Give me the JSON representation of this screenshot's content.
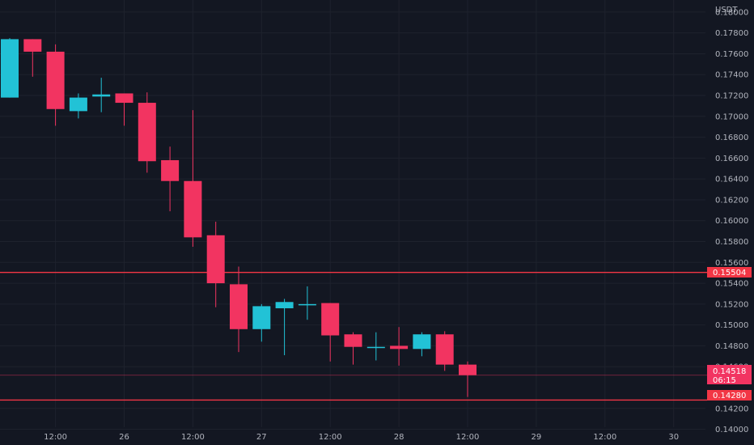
{
  "axis": {
    "currency": "USDT"
  },
  "price_tags": {
    "level_upper": "0.15504",
    "current_price": "0.14518",
    "countdown": "06:15",
    "level_lower": "0.14280"
  },
  "colors": {
    "background": "#131722",
    "grid": "#1e222d",
    "up": "#22c2d6",
    "down": "#f23461",
    "level_line": "#f23645",
    "text": "#b2b5be"
  },
  "chart_data": {
    "type": "candlestick",
    "y_unit": "USDT",
    "ylim": [
      0.1395,
      0.181
    ],
    "y_ticks": [
      0.14,
      0.142,
      0.146,
      0.148,
      0.15,
      0.152,
      0.154,
      0.156,
      0.158,
      0.16,
      0.162,
      0.164,
      0.166,
      0.168,
      0.17,
      0.172,
      0.174,
      0.176,
      0.178,
      0.18
    ],
    "y_tick_labels": [
      "0.14000",
      "0.14200",
      "0.14600",
      "0.14800",
      "0.15000",
      "0.15200",
      "0.15400",
      "0.15600",
      "0.15800",
      "0.16000",
      "0.16200",
      "0.16400",
      "0.16600",
      "0.16800",
      "0.17000",
      "0.17200",
      "0.17400",
      "0.17600",
      "0.17800",
      "0.18000"
    ],
    "x_tick_labels": [
      "12:00",
      "26",
      "12:00",
      "27",
      "12:00",
      "28",
      "12:00",
      "29",
      "12:00",
      "30"
    ],
    "x_tick_slots": [
      2,
      5,
      8,
      11,
      14,
      17,
      20,
      23,
      26,
      29
    ],
    "candles": [
      {
        "o": 0.1718,
        "h": 0.1775,
        "l": 0.1718,
        "c": 0.1774
      },
      {
        "o": 0.1774,
        "h": 0.1774,
        "l": 0.1738,
        "c": 0.1762
      },
      {
        "o": 0.1762,
        "h": 0.1769,
        "l": 0.1691,
        "c": 0.1707
      },
      {
        "o": 0.1705,
        "h": 0.1722,
        "l": 0.1698,
        "c": 0.1718
      },
      {
        "o": 0.1719,
        "h": 0.1737,
        "l": 0.1704,
        "c": 0.1721
      },
      {
        "o": 0.1722,
        "h": 0.1722,
        "l": 0.1691,
        "c": 0.1713
      },
      {
        "o": 0.1713,
        "h": 0.1723,
        "l": 0.1646,
        "c": 0.1657
      },
      {
        "o": 0.1658,
        "h": 0.1671,
        "l": 0.1609,
        "c": 0.1638
      },
      {
        "o": 0.1638,
        "h": 0.1706,
        "l": 0.1575,
        "c": 0.1584
      },
      {
        "o": 0.1586,
        "h": 0.1599,
        "l": 0.1517,
        "c": 0.154
      },
      {
        "o": 0.1539,
        "h": 0.1556,
        "l": 0.1474,
        "c": 0.1496
      },
      {
        "o": 0.1496,
        "h": 0.152,
        "l": 0.1484,
        "c": 0.1518
      },
      {
        "o": 0.1516,
        "h": 0.1525,
        "l": 0.1471,
        "c": 0.1522
      },
      {
        "o": 0.152,
        "h": 0.1537,
        "l": 0.1505,
        "c": 0.152
      },
      {
        "o": 0.1521,
        "h": 0.1521,
        "l": 0.1465,
        "c": 0.149
      },
      {
        "o": 0.1491,
        "h": 0.1493,
        "l": 0.1462,
        "c": 0.1479
      },
      {
        "o": 0.1479,
        "h": 0.1493,
        "l": 0.1466,
        "c": 0.1479
      },
      {
        "o": 0.148,
        "h": 0.1498,
        "l": 0.1461,
        "c": 0.1477
      },
      {
        "o": 0.1477,
        "h": 0.1493,
        "l": 0.147,
        "c": 0.1491
      },
      {
        "o": 0.1491,
        "h": 0.1494,
        "l": 0.1456,
        "c": 0.1462
      },
      {
        "o": 0.1462,
        "h": 0.1465,
        "l": 0.1431,
        "c": 0.1452
      }
    ],
    "horizontal_levels": [
      0.15504,
      0.1428
    ],
    "current_price": 0.14518
  }
}
